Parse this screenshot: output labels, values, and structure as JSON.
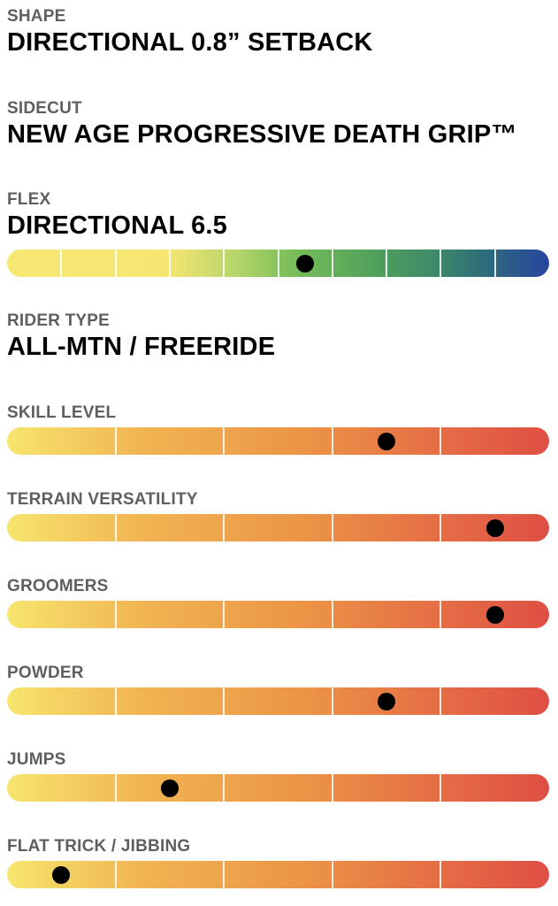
{
  "shape": {
    "label": "SHAPE",
    "value": "DIRECTIONAL 0.8” SETBACK"
  },
  "sidecut": {
    "label": "SIDECUT",
    "value": "NEW AGE PROGRESSIVE DEATH GRIP™"
  },
  "flex": {
    "label": "FLEX",
    "value": "DIRECTIONAL 6.5",
    "level": 0.55
  },
  "rider_type": {
    "label": "RIDER TYPE",
    "value": "ALL-MTN / FREERIDE"
  },
  "ratings": [
    {
      "label": "SKILL LEVEL",
      "level": 0.7
    },
    {
      "label": "TERRAIN VERSATILITY",
      "level": 0.9
    },
    {
      "label": "GROOMERS",
      "level": 0.9
    },
    {
      "label": "POWDER",
      "level": 0.7
    },
    {
      "label": "JUMPS",
      "level": 0.3
    },
    {
      "label": "FLAT TRICK / JIBBING",
      "level": 0.1
    }
  ],
  "colors": {
    "label_gray": "#5f5f5f",
    "value_black": "#000000",
    "flex_gradient_start": "#f7e874",
    "flex_gradient_mid": "#4fa05c",
    "flex_gradient_end": "#2745a0",
    "rating_gradient_start": "#f7e56d",
    "rating_gradient_end": "#df4f44"
  }
}
